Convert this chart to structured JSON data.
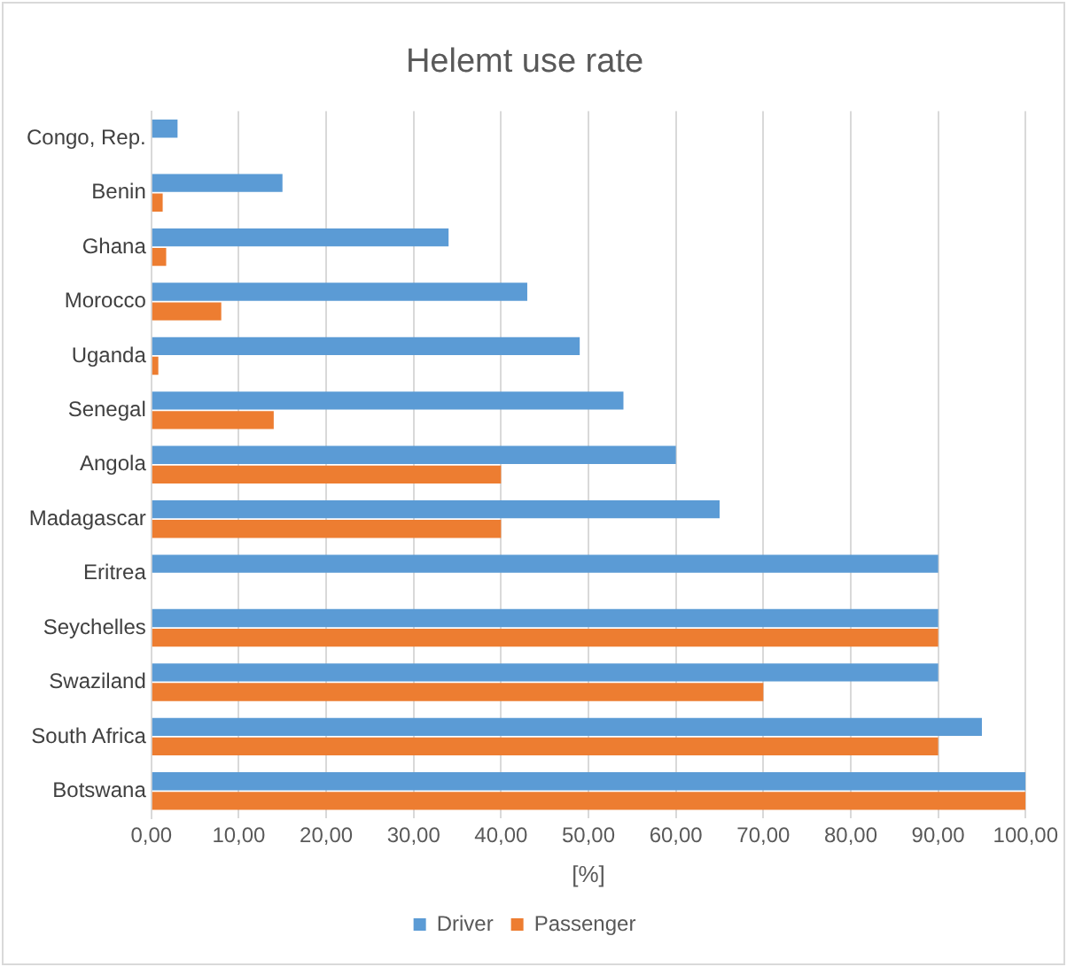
{
  "chart_data": {
    "type": "bar",
    "orientation": "horizontal",
    "title": "Helemt use rate",
    "xlabel": "[%]",
    "categories": [
      "Congo, Rep.",
      "Benin",
      "Ghana",
      "Morocco",
      "Uganda",
      "Senegal",
      "Angola",
      "Madagascar",
      "Eritrea",
      "Seychelles",
      "Swaziland",
      "South Africa",
      "Botswana"
    ],
    "series": [
      {
        "name": "Driver",
        "color": "#5b9bd5",
        "values": [
          3,
          15,
          34,
          43,
          49,
          54,
          60,
          65,
          90,
          90,
          90,
          95,
          100
        ]
      },
      {
        "name": "Passenger",
        "color": "#ed7d31",
        "values": [
          null,
          1.3,
          1.7,
          8,
          0.8,
          14,
          40,
          40,
          null,
          90,
          70,
          90,
          100
        ]
      }
    ],
    "xlim": [
      0,
      100
    ],
    "xticks": [
      {
        "value": 0,
        "label": "0,00"
      },
      {
        "value": 10,
        "label": "10,00"
      },
      {
        "value": 20,
        "label": "20,00"
      },
      {
        "value": 30,
        "label": "30,00"
      },
      {
        "value": 40,
        "label": "40,00"
      },
      {
        "value": 50,
        "label": "50,00"
      },
      {
        "value": 60,
        "label": "60,00"
      },
      {
        "value": 70,
        "label": "70,00"
      },
      {
        "value": 80,
        "label": "80,00"
      },
      {
        "value": 90,
        "label": "90,00"
      },
      {
        "value": 100,
        "label": "100,00"
      }
    ],
    "grid": "x",
    "legend": "bottom"
  }
}
